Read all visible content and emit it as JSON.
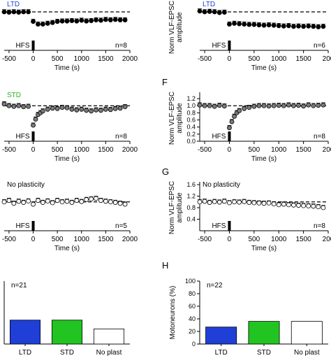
{
  "chart_data": [
    {
      "type": "scatter",
      "title": "LTD",
      "title_color": "#1f3fd6",
      "xlabel": "Time (s)",
      "ylabel": "",
      "xlim": [
        -600,
        2000
      ],
      "ylim": [
        0,
        1.2
      ],
      "xticks": [
        "-500",
        "0",
        "500",
        "1000",
        "1500",
        "2000"
      ],
      "yticks": [],
      "stim_label": "HFS",
      "n_label": "n=8",
      "baseline": 1.0,
      "marker_fill": "#000000",
      "error_bars": true,
      "x": [
        -600,
        -500,
        -400,
        -300,
        -200,
        -100,
        0,
        100,
        200,
        300,
        400,
        500,
        600,
        700,
        800,
        900,
        1000,
        1100,
        1200,
        1300,
        1400,
        1500,
        1600,
        1700,
        1800,
        1900
      ],
      "y": [
        1.0,
        0.99,
        1.0,
        0.99,
        1.0,
        1.0,
        0.75,
        0.68,
        0.68,
        0.7,
        0.72,
        0.75,
        0.76,
        0.76,
        0.77,
        0.76,
        0.78,
        0.76,
        0.77,
        0.79,
        0.78,
        0.8,
        0.79,
        0.8,
        0.79,
        0.79
      ]
    },
    {
      "type": "scatter",
      "title": "LTD",
      "title_color": "#1f3fd6",
      "xlabel": "Time (s)",
      "ylabel": "Norm VLF-EPSC amplitude",
      "xlim": [
        -600,
        2000
      ],
      "ylim": [
        0,
        1.2
      ],
      "xticks": [
        "-500",
        "0",
        "500",
        "1000",
        "1500",
        "200"
      ],
      "yticks": [],
      "stim_label": "HFS",
      "n_label": "n=6",
      "baseline": 1.0,
      "marker_fill": "#000000",
      "error_bars": true,
      "x": [
        -600,
        -500,
        -400,
        -300,
        -200,
        -100,
        0,
        100,
        200,
        300,
        400,
        500,
        600,
        700,
        800,
        900,
        1000,
        1100,
        1200,
        1300,
        1400,
        1500,
        1600,
        1700,
        1800,
        1900
      ],
      "y": [
        1.02,
        1.0,
        1.01,
        1.0,
        0.98,
        0.99,
        0.68,
        0.7,
        0.69,
        0.68,
        0.67,
        0.67,
        0.66,
        0.65,
        0.66,
        0.65,
        0.64,
        0.63,
        0.64,
        0.62,
        0.63,
        0.62,
        0.63,
        0.62,
        0.61,
        0.62
      ]
    },
    {
      "type": "scatter",
      "title": "STD",
      "title_color": "#22b322",
      "xlabel": "Time (s)",
      "ylabel": "",
      "xlim": [
        -600,
        2000
      ],
      "ylim": [
        0,
        1.3
      ],
      "xticks": [
        "-500",
        "0",
        "500",
        "1000",
        "1500",
        "2000"
      ],
      "yticks": [],
      "stim_label": "HFS",
      "n_label": "n=8",
      "baseline": 1.0,
      "marker_fill": "#7a7a7a",
      "error_bars": true,
      "x": [
        -600,
        -500,
        -400,
        -300,
        -200,
        -100,
        0,
        50,
        100,
        150,
        200,
        300,
        400,
        500,
        600,
        700,
        800,
        900,
        1000,
        1100,
        1200,
        1300,
        1400,
        1500,
        1600,
        1700,
        1800,
        1900
      ],
      "y": [
        1.05,
        1.0,
        0.98,
        1.0,
        0.97,
        0.98,
        0.45,
        0.62,
        0.75,
        0.8,
        0.85,
        0.9,
        0.93,
        0.92,
        0.95,
        0.94,
        0.9,
        0.88,
        0.9,
        0.87,
        0.85,
        0.88,
        0.87,
        0.9,
        0.89,
        0.92,
        0.93,
        0.97
      ]
    },
    {
      "type": "scatter",
      "title": "",
      "xlabel": "Time (s)",
      "ylabel": "Norm VLF-EPSC amplitude",
      "xlim": [
        -600,
        2000
      ],
      "ylim": [
        0,
        1.3
      ],
      "xticks": [
        "-500",
        "0",
        "500",
        "1000",
        "1500",
        "200"
      ],
      "yticks": [
        "0.0",
        "0.2",
        "0.4",
        "0.6",
        "0.8",
        "1.0",
        "1.2"
      ],
      "stim_label": "HFS",
      "n_label": "n=8",
      "baseline": 1.0,
      "marker_fill": "#7a7a7a",
      "error_bars": true,
      "x": [
        -600,
        -500,
        -400,
        -300,
        -200,
        -100,
        0,
        50,
        100,
        150,
        200,
        300,
        400,
        500,
        600,
        700,
        800,
        900,
        1000,
        1100,
        1200,
        1300,
        1400,
        1500,
        1600,
        1700,
        1800,
        1900
      ],
      "y": [
        1.02,
        1.0,
        1.0,
        0.98,
        1.01,
        0.99,
        0.38,
        0.55,
        0.7,
        0.8,
        0.86,
        0.92,
        0.95,
        0.98,
        1.0,
        1.0,
        0.99,
        1.0,
        1.01,
        1.0,
        1.02,
        1.0,
        1.01,
        0.99,
        1.02,
        1.0,
        1.01,
        1.02
      ]
    },
    {
      "type": "scatter",
      "title": "No plasticity",
      "title_color": "#000000",
      "xlabel": "Time (s)",
      "ylabel": "",
      "xlim": [
        -600,
        2000
      ],
      "ylim": [
        0,
        1.6
      ],
      "xticks": [
        "-500",
        "0",
        "500",
        "1000",
        "1500",
        "2000"
      ],
      "yticks": [],
      "stim_label": "HFS",
      "n_label": "n=5",
      "baseline": 1.0,
      "marker_fill": "#ffffff",
      "error_bars": true,
      "x": [
        -600,
        -500,
        -400,
        -300,
        -200,
        -100,
        0,
        100,
        200,
        300,
        400,
        500,
        600,
        700,
        800,
        900,
        1000,
        1100,
        1200,
        1300,
        1400,
        1500,
        1600,
        1700,
        1800,
        1900
      ],
      "y": [
        1.0,
        1.05,
        0.95,
        1.02,
        0.98,
        1.03,
        0.92,
        1.05,
        0.98,
        1.03,
        0.97,
        1.05,
        1.0,
        1.02,
        0.98,
        1.05,
        1.01,
        1.08,
        1.1,
        1.12,
        1.05,
        1.02,
        1.0,
        0.98,
        0.95,
        0.92
      ]
    },
    {
      "type": "scatter",
      "title": "No plasticity",
      "title_color": "#000000",
      "xlabel": "Time (s)",
      "ylabel": "Norm VLF-EPSC amplitude",
      "xlim": [
        -600,
        2000
      ],
      "ylim": [
        0,
        1.6
      ],
      "xticks": [
        "-500",
        "0",
        "500",
        "1000",
        "1500",
        "200"
      ],
      "yticks": [
        "0.4",
        "0.8",
        "1.2",
        "1.6"
      ],
      "stim_label": "HFS",
      "n_label": "n=8",
      "baseline": 1.0,
      "marker_fill": "#ffffff",
      "error_bars": true,
      "x": [
        -600,
        -500,
        -400,
        -300,
        -200,
        -100,
        0,
        100,
        200,
        300,
        400,
        500,
        600,
        700,
        800,
        900,
        1000,
        1100,
        1200,
        1300,
        1400,
        1500,
        1600,
        1700,
        1800,
        1900
      ],
      "y": [
        1.0,
        1.02,
        0.98,
        1.01,
        0.99,
        1.02,
        0.97,
        1.0,
        0.99,
        1.01,
        0.98,
        0.97,
        0.96,
        0.95,
        0.96,
        0.93,
        0.9,
        0.92,
        0.9,
        0.89,
        0.88,
        0.87,
        0.86,
        0.85,
        0.83,
        0.8
      ]
    },
    {
      "type": "bar",
      "title": "",
      "n_label": "n=21",
      "xlabel": "",
      "ylabel": "",
      "ylim": [
        0,
        100
      ],
      "yticks": [],
      "categories": [
        "LTD",
        "STD",
        "No plast"
      ],
      "values": [
        38,
        38,
        24
      ],
      "colors": [
        "#1f3fd6",
        "#22c422",
        "#ffffff"
      ]
    },
    {
      "type": "bar",
      "title": "",
      "n_label": "n=22",
      "xlabel": "",
      "ylabel": "Motoneurons (%)",
      "ylim": [
        0,
        100
      ],
      "yticks": [
        "0",
        "20",
        "40",
        "60",
        "80",
        "100"
      ],
      "categories": [
        "LTD",
        "STD",
        "No plast"
      ],
      "values": [
        27,
        36,
        36
      ],
      "colors": [
        "#1f3fd6",
        "#22c422",
        "#ffffff"
      ]
    }
  ],
  "panel_letters": {
    "right_std": "F",
    "right_noplast": "G",
    "right_bar": "H"
  }
}
